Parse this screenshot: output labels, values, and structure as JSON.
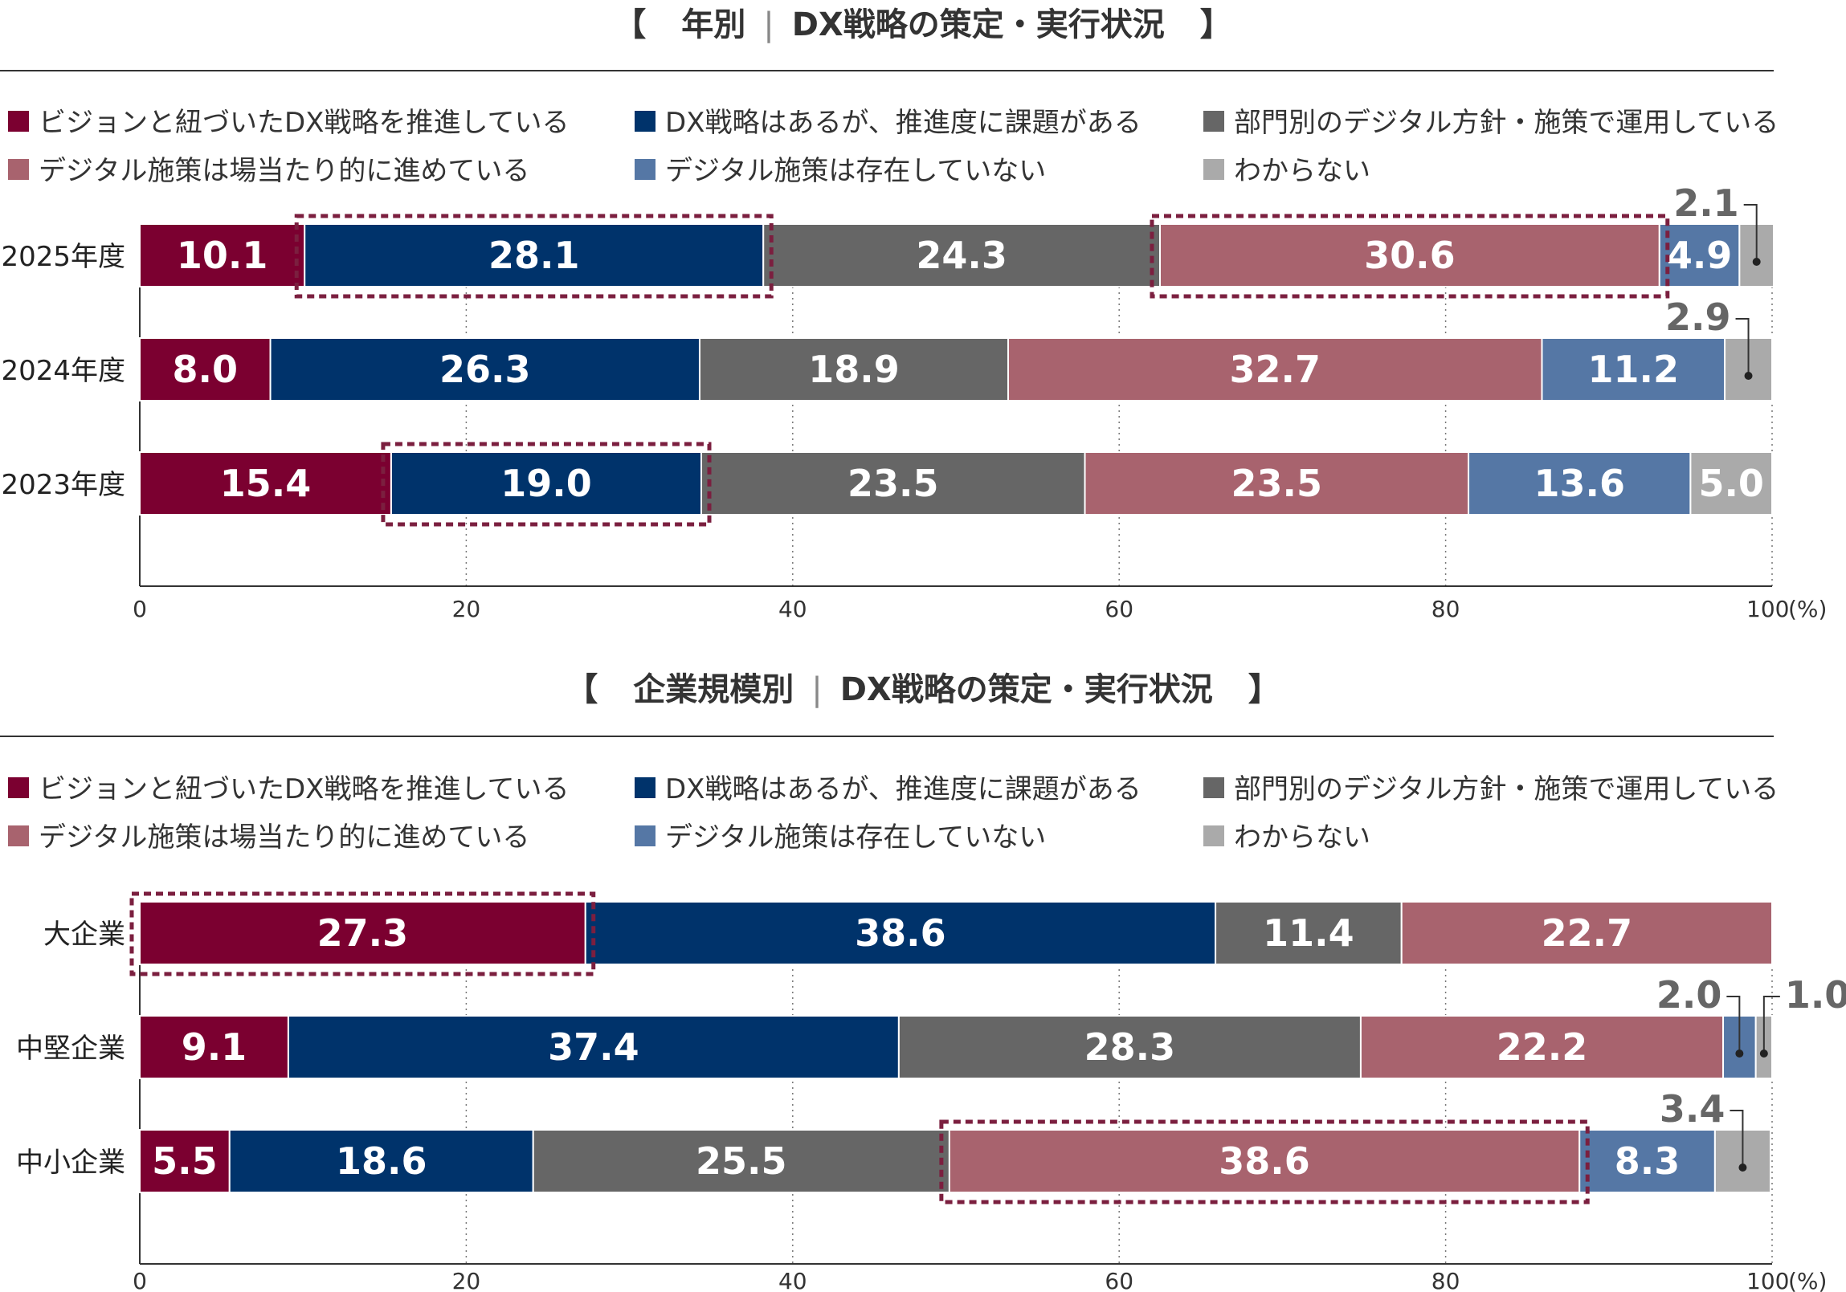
{
  "chart_data": [
    {
      "type": "bar",
      "orientation": "horizontal",
      "stacked": true,
      "title_bracket_left": "【",
      "title_left": "年別",
      "title_right": "DX戦略の策定・実行状況",
      "title_bracket_right": "】",
      "categories": [
        "2025年度",
        "2024年度",
        "2023年度"
      ],
      "series": [
        {
          "name": "ビジョンと紐づいたDX戦略を推進している",
          "color": "#7b0030",
          "values": [
            10.1,
            8.0,
            15.4
          ]
        },
        {
          "name": "DX戦略はあるが、推進度に課題がある",
          "color": "#00336b",
          "values": [
            28.1,
            26.3,
            19.0
          ]
        },
        {
          "name": "部門別のデジタル方針・施策で運用している",
          "color": "#666666",
          "values": [
            24.3,
            18.9,
            23.5
          ]
        },
        {
          "name": "デジタル施策は場当たり的に進めている",
          "color": "#a8636e",
          "values": [
            30.6,
            32.7,
            23.5
          ]
        },
        {
          "name": "デジタル施策は存在していない",
          "color": "#5577a5",
          "values": [
            4.9,
            11.2,
            13.6
          ]
        },
        {
          "name": "わからない",
          "color": "#aaaaaa",
          "values": [
            2.1,
            2.9,
            5.0
          ]
        }
      ],
      "value_labels": [
        [
          "10.1",
          "28.1",
          "24.3",
          "30.6",
          "4.9",
          "2.1"
        ],
        [
          "8.0",
          "26.3",
          "18.9",
          "32.7",
          "11.2",
          "2.9"
        ],
        [
          "15.4",
          "19.0",
          "23.5",
          "23.5",
          "13.6",
          "5.0"
        ]
      ],
      "highlights": [
        {
          "category": 0,
          "series": 1
        },
        {
          "category": 0,
          "series": 3
        },
        {
          "category": 2,
          "series": 1
        }
      ],
      "xlim": [
        0,
        100
      ],
      "x_ticks": [
        "0",
        "20",
        "40",
        "60",
        "80",
        "100"
      ],
      "x_unit": "(%)",
      "highlight_color": "#7b1f3f"
    },
    {
      "type": "bar",
      "orientation": "horizontal",
      "stacked": true,
      "title_bracket_left": "【",
      "title_left": "企業規模別",
      "title_right": "DX戦略の策定・実行状況",
      "title_bracket_right": "】",
      "categories": [
        "大企業",
        "中堅企業",
        "中小企業"
      ],
      "series": [
        {
          "name": "ビジョンと紐づいたDX戦略を推進している",
          "color": "#7b0030",
          "values": [
            27.3,
            9.1,
            5.5
          ]
        },
        {
          "name": "DX戦略はあるが、推進度に課題がある",
          "color": "#00336b",
          "values": [
            38.6,
            37.4,
            18.6
          ]
        },
        {
          "name": "部門別のデジタル方針・施策で運用している",
          "color": "#666666",
          "values": [
            11.4,
            28.3,
            25.5
          ]
        },
        {
          "name": "デジタル施策は場当たり的に進めている",
          "color": "#a8636e",
          "values": [
            22.7,
            22.2,
            38.6
          ]
        },
        {
          "name": "デジタル施策は存在していない",
          "color": "#5577a5",
          "values": [
            0,
            2.0,
            8.3
          ]
        },
        {
          "name": "わからない",
          "color": "#aaaaaa",
          "values": [
            0,
            1.0,
            3.4
          ]
        }
      ],
      "value_labels": [
        [
          "27.3",
          "38.6",
          "11.4",
          "22.7",
          "",
          ""
        ],
        [
          "9.1",
          "37.4",
          "28.3",
          "22.2",
          "2.0",
          "1.0"
        ],
        [
          "5.5",
          "18.6",
          "25.5",
          "38.6",
          "8.3",
          "3.4"
        ]
      ],
      "highlights": [
        {
          "category": 0,
          "series": 0
        },
        {
          "category": 2,
          "series": 3
        }
      ],
      "xlim": [
        0,
        100
      ],
      "x_ticks": [
        "0",
        "20",
        "40",
        "60",
        "80",
        "100"
      ],
      "x_unit": "(%)",
      "highlight_color": "#7b1f3f"
    }
  ]
}
